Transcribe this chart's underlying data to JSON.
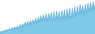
{
  "values": [
    3,
    2,
    4,
    2,
    3,
    5,
    3,
    4,
    6,
    4,
    5,
    7,
    5,
    6,
    8,
    5,
    7,
    9,
    6,
    8,
    10,
    7,
    9,
    12,
    8,
    10,
    13,
    9,
    12,
    15,
    10,
    13,
    16,
    11,
    14,
    17,
    12,
    15,
    18,
    13,
    16,
    20,
    14,
    17,
    21,
    15,
    19,
    23,
    16,
    20,
    24,
    17,
    21,
    25,
    16,
    20,
    26,
    18,
    22,
    27,
    16,
    20,
    28,
    17,
    21,
    29,
    18,
    22,
    28,
    17,
    21,
    30,
    19,
    23,
    31,
    18,
    22,
    32,
    20,
    25,
    33,
    19,
    24,
    32,
    21,
    26,
    34,
    22,
    27,
    35,
    24,
    29,
    37,
    26,
    31,
    36,
    24,
    30,
    38,
    27,
    32,
    39,
    28,
    34,
    40,
    29,
    35,
    41,
    30,
    36
  ],
  "line_color": "#5bafd6",
  "fill_color": "#7ec8e8",
  "background_color": "#ffffff",
  "ylim_min": 0,
  "ylim_max": 44
}
